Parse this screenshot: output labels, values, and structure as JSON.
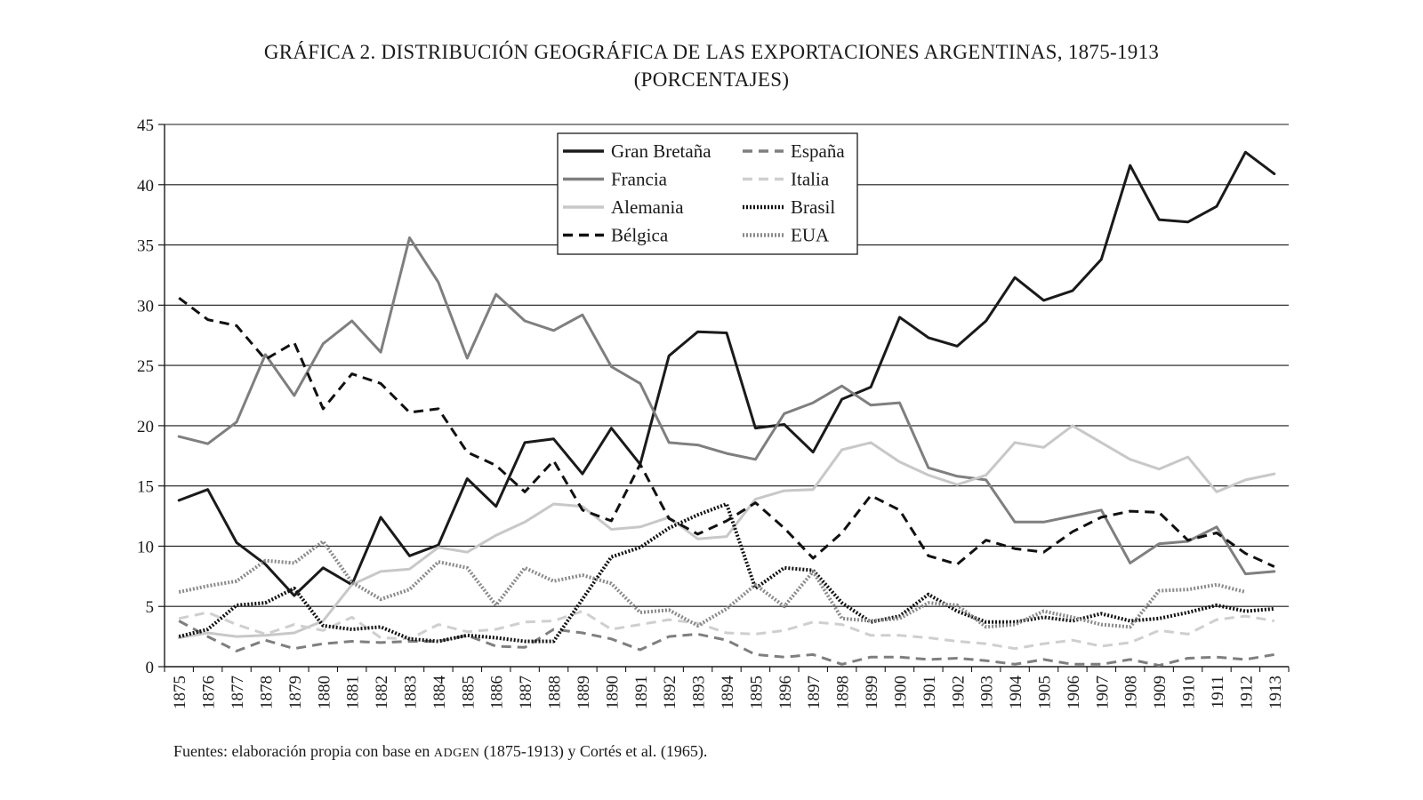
{
  "chart_data": {
    "type": "line",
    "title": "GRÁFICA 2. DISTRIBUCIÓN GEOGRÁFICA DE LAS EXPORTACIONES ARGENTINAS, 1875-1913",
    "subtitle": "(PORCENTAJES)",
    "xlabel": "",
    "ylabel": "",
    "ylim": [
      0,
      45
    ],
    "yticks": [
      0,
      5,
      10,
      15,
      20,
      25,
      30,
      35,
      40,
      45
    ],
    "grid": "horizontal",
    "legend_position": "top-center",
    "categories": [
      "1875",
      "1876",
      "1877",
      "1878",
      "1879",
      "1880",
      "1881",
      "1882",
      "1883",
      "1884",
      "1885",
      "1886",
      "1887",
      "1888",
      "1889",
      "1890",
      "1891",
      "1892",
      "1893",
      "1894",
      "1895",
      "1896",
      "1897",
      "1898",
      "1899",
      "1900",
      "1901",
      "1902",
      "1903",
      "1904",
      "1905",
      "1906",
      "1907",
      "1908",
      "1909",
      "1910",
      "1911",
      "1912",
      "1913"
    ],
    "series": [
      {
        "name": "Gran Bretaña",
        "color": "#1a1a1a",
        "style": "solid",
        "values": [
          13.8,
          14.7,
          10.3,
          8.5,
          5.9,
          8.2,
          6.8,
          12.4,
          9.2,
          10.1,
          15.6,
          13.3,
          18.6,
          18.9,
          16.0,
          19.8,
          16.8,
          25.8,
          27.8,
          27.7,
          19.8,
          20.1,
          17.8,
          22.2,
          23.2,
          29.0,
          27.3,
          26.6,
          28.7,
          32.3,
          30.4,
          31.2,
          33.8,
          41.6,
          37.1,
          36.9,
          38.2,
          42.7,
          40.9
        ]
      },
      {
        "name": "Francia",
        "color": "#7f7f7f",
        "style": "solid",
        "values": [
          19.1,
          18.5,
          20.3,
          25.9,
          22.5,
          26.8,
          28.7,
          26.1,
          35.6,
          31.9,
          25.6,
          30.9,
          28.7,
          27.9,
          29.2,
          24.9,
          23.5,
          18.6,
          18.4,
          17.7,
          17.2,
          21.0,
          21.9,
          23.3,
          21.7,
          21.9,
          16.5,
          15.8,
          15.5,
          12.0,
          12.0,
          12.5,
          13.0,
          8.6,
          10.2,
          10.4,
          11.6,
          7.7,
          7.9
        ]
      },
      {
        "name": "Alemania",
        "color": "#c8c8c8",
        "style": "solid",
        "values": [
          2.4,
          2.8,
          2.5,
          2.6,
          2.8,
          3.8,
          6.8,
          7.9,
          8.1,
          9.9,
          9.5,
          10.9,
          12.0,
          13.5,
          13.3,
          11.4,
          11.6,
          12.4,
          10.6,
          10.8,
          13.9,
          14.6,
          14.7,
          18.0,
          18.6,
          17.0,
          15.9,
          15.1,
          15.9,
          18.6,
          18.2,
          20.0,
          18.6,
          17.2,
          16.4,
          17.4,
          14.5,
          15.5,
          16.0
        ]
      },
      {
        "name": "Bélgica",
        "color": "#111111",
        "style": "dashed",
        "values": [
          30.6,
          28.8,
          28.3,
          25.5,
          26.9,
          21.4,
          24.3,
          23.5,
          21.1,
          21.4,
          17.8,
          16.7,
          14.5,
          17.1,
          13.0,
          12.1,
          16.8,
          12.3,
          11.0,
          12.1,
          13.6,
          11.5,
          9.0,
          11.1,
          14.2,
          13.0,
          9.2,
          8.5,
          10.5,
          9.8,
          9.5,
          11.2,
          12.4,
          12.9,
          12.8,
          10.5,
          11.1,
          9.4,
          8.3
        ]
      },
      {
        "name": "España",
        "color": "#7f7f7f",
        "style": "dashed",
        "values": [
          3.8,
          2.5,
          1.3,
          2.2,
          1.5,
          1.9,
          2.1,
          2.0,
          2.1,
          2.1,
          2.6,
          1.7,
          1.6,
          3.1,
          2.8,
          2.3,
          1.4,
          2.5,
          2.7,
          2.2,
          1.0,
          0.8,
          1.0,
          0.2,
          0.8,
          0.8,
          0.6,
          0.7,
          0.5,
          0.2,
          0.6,
          0.2,
          0.2,
          0.6,
          0.1,
          0.7,
          0.8,
          0.6,
          1.0
        ]
      },
      {
        "name": "Italia",
        "color": "#cfcfcf",
        "style": "dashed",
        "values": [
          4.0,
          4.5,
          3.5,
          2.7,
          3.5,
          3.0,
          4.1,
          2.4,
          2.3,
          3.5,
          2.9,
          3.1,
          3.7,
          3.8,
          4.6,
          3.1,
          3.5,
          3.9,
          3.6,
          2.8,
          2.7,
          3.0,
          3.7,
          3.5,
          2.6,
          2.6,
          2.4,
          2.1,
          1.9,
          1.5,
          1.9,
          2.2,
          1.7,
          2.0,
          3.0,
          2.7,
          3.9,
          4.2,
          3.8
        ]
      },
      {
        "name": "Brasil",
        "color": "#111111",
        "style": "dotted",
        "values": [
          2.5,
          3.1,
          5.1,
          5.3,
          6.5,
          3.4,
          3.1,
          3.3,
          2.3,
          2.1,
          2.6,
          2.4,
          2.1,
          2.1,
          5.6,
          9.1,
          9.9,
          11.5,
          12.6,
          13.5,
          6.5,
          8.2,
          8.0,
          5.3,
          3.7,
          4.2,
          6.0,
          4.6,
          3.7,
          3.7,
          4.1,
          3.8,
          4.4,
          3.8,
          4.0,
          4.5,
          5.1,
          4.6,
          4.8
        ]
      },
      {
        "name": "EUA",
        "color": "#8a8a8a",
        "style": "dotted",
        "values": [
          6.2,
          6.7,
          7.1,
          8.8,
          8.6,
          10.4,
          7.0,
          5.6,
          6.4,
          8.7,
          8.2,
          5.1,
          8.2,
          7.1,
          7.6,
          6.9,
          4.5,
          4.7,
          3.4,
          4.8,
          6.8,
          5.0,
          7.9,
          4.0,
          3.8,
          4.0,
          5.3,
          5.1,
          3.3,
          3.5,
          4.6,
          4.1,
          3.5,
          3.3,
          6.3,
          6.4,
          6.8,
          6.2,
          null
        ]
      }
    ]
  },
  "source_note": {
    "prefix": "Fuentes: elaboración propia con base en ",
    "acronym": "ADGEN",
    "suffix": " (1875-1913) y Cortés et al. (1965)."
  }
}
